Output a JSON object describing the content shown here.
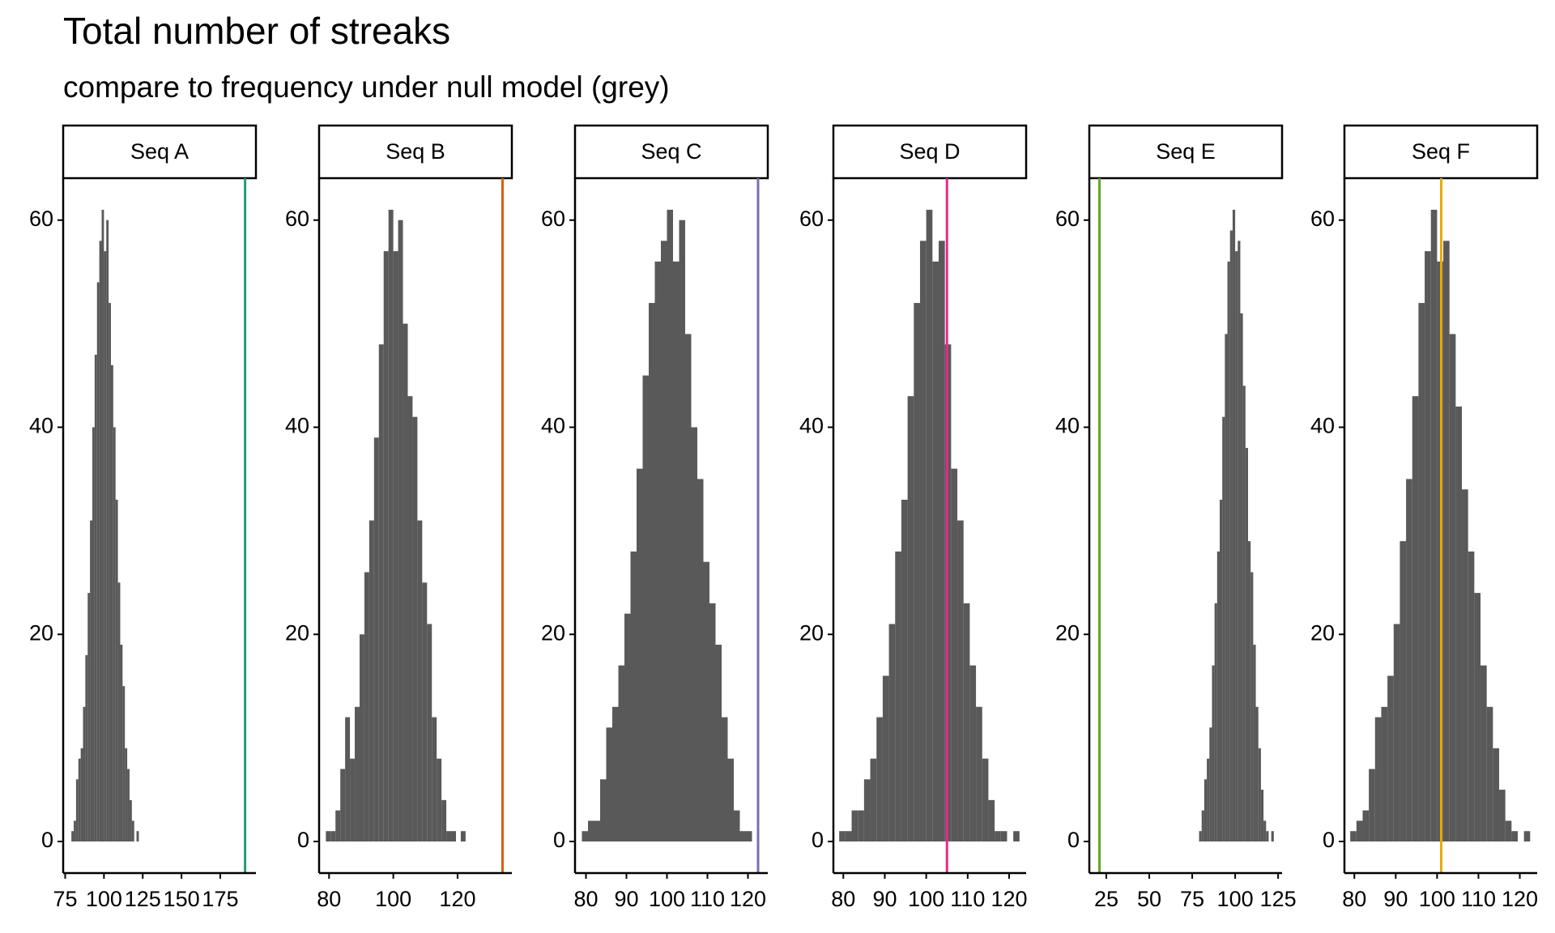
{
  "title": "Total number of streaks",
  "subtitle": "compare to frequency under null model (grey)",
  "chart_data": [
    {
      "type": "histogram",
      "panel_label": "Seq A",
      "color": "#595959",
      "vline": 191,
      "vline_color": "#1b9e77",
      "bins": [
        79,
        80.5,
        82,
        83.5,
        85,
        86.5,
        88,
        89.5,
        91,
        92.5,
        94,
        95.5,
        97,
        98.5,
        100,
        101.5,
        103,
        104.5,
        106,
        107.5,
        109,
        110.5,
        112,
        113.5,
        115,
        116.5,
        118,
        119.5,
        121,
        122.5,
        124
      ],
      "counts": [
        1,
        2,
        6,
        8,
        9,
        13,
        18,
        24,
        31,
        40,
        47,
        54,
        58,
        61,
        57,
        60,
        52,
        46,
        40,
        33,
        25,
        19,
        15,
        9,
        7,
        4,
        2,
        0,
        1,
        0
      ],
      "xlim": [
        73.7,
        198
      ],
      "xticks": [
        75,
        100,
        125,
        150,
        175
      ],
      "ylim": [
        -3.05,
        64.05
      ],
      "yticks": [
        0,
        20,
        40,
        60
      ]
    },
    {
      "type": "histogram",
      "panel_label": "Seq B",
      "color": "#595959",
      "vline": 134,
      "vline_color": "#d95f02",
      "bins": [
        79,
        80.5,
        82,
        83.5,
        85,
        86.5,
        88,
        89.5,
        91,
        92.5,
        94,
        95.5,
        97,
        98.5,
        100,
        101.5,
        103,
        104.5,
        106,
        107.5,
        109,
        110.5,
        112,
        113.5,
        115,
        116.5,
        118,
        119.5,
        121,
        122.5,
        124
      ],
      "counts": [
        1,
        1,
        3,
        7,
        12,
        8,
        13,
        20,
        26,
        31,
        39,
        48,
        57,
        61,
        57,
        60,
        50,
        43,
        41,
        31,
        25,
        21,
        12,
        8,
        4,
        1,
        1,
        0,
        1,
        0
      ],
      "xlim": [
        76.9,
        136.9
      ],
      "xticks": [
        80,
        100,
        120
      ],
      "ylim": [
        -3.05,
        64.05
      ],
      "yticks": [
        0,
        20,
        40,
        60
      ]
    },
    {
      "type": "histogram",
      "panel_label": "Seq C",
      "color": "#595959",
      "vline": 122.5,
      "vline_color": "#7570b3",
      "bins": [
        79,
        80.5,
        82,
        83.5,
        85,
        86.5,
        88,
        89.5,
        91,
        92.5,
        94,
        95.5,
        97,
        98.5,
        100,
        101.5,
        103,
        104.5,
        106,
        107.5,
        109,
        110.5,
        112,
        113.5,
        115,
        116.5,
        118,
        119.5,
        121,
        122.5,
        124
      ],
      "counts": [
        1,
        2,
        2,
        6,
        11,
        13,
        17,
        22,
        28,
        36,
        45,
        52,
        56,
        58,
        61,
        56,
        60,
        49,
        40,
        35,
        27,
        23,
        19,
        12,
        8,
        3,
        1,
        1,
        0,
        0
      ],
      "xlim": [
        77.3,
        124.9
      ],
      "xticks": [
        80,
        90,
        100,
        110,
        120
      ],
      "ylim": [
        -3.05,
        64.05
      ],
      "yticks": [
        0,
        20,
        40,
        60
      ]
    },
    {
      "type": "histogram",
      "panel_label": "Seq D",
      "color": "#595959",
      "vline": 105,
      "vline_color": "#e7298a",
      "bins": [
        79,
        80.5,
        82,
        83.5,
        85,
        86.5,
        88,
        89.5,
        91,
        92.5,
        94,
        95.5,
        97,
        98.5,
        100,
        101.5,
        103,
        104.5,
        106,
        107.5,
        109,
        110.5,
        112,
        113.5,
        115,
        116.5,
        118,
        119.5,
        121,
        122.5,
        124
      ],
      "counts": [
        1,
        1,
        3,
        3,
        6,
        8,
        12,
        16,
        21,
        28,
        33,
        43,
        52,
        58,
        61,
        56,
        58,
        48,
        36,
        31,
        23,
        17,
        13,
        8,
        4,
        1,
        1,
        0,
        1,
        0
      ],
      "xlim": [
        77.6,
        124.1
      ],
      "xticks": [
        80,
        90,
        100,
        110,
        120
      ],
      "ylim": [
        -3.05,
        64.05
      ],
      "yticks": [
        0,
        20,
        40,
        60
      ]
    },
    {
      "type": "histogram",
      "panel_label": "Seq E",
      "color": "#595959",
      "vline": 21,
      "vline_color": "#66a61e",
      "bins": [
        79,
        80.5,
        82,
        83.5,
        85,
        86.5,
        88,
        89.5,
        91,
        92.5,
        94,
        95.5,
        97,
        98.5,
        100,
        101.5,
        103,
        104.5,
        106,
        107.5,
        109,
        110.5,
        112,
        113.5,
        115,
        116.5,
        118,
        119.5,
        121,
        122.5,
        124
      ],
      "counts": [
        1,
        3,
        6,
        8,
        11,
        17,
        23,
        28,
        33,
        41,
        49,
        56,
        59,
        61,
        57,
        58,
        51,
        44,
        38,
        29,
        26,
        19,
        13,
        9,
        5,
        2,
        1,
        0,
        1,
        0
      ],
      "xlim": [
        15.1,
        127.3
      ],
      "xticks": [
        25,
        50,
        75,
        100,
        125
      ],
      "ylim": [
        -3.05,
        64.05
      ],
      "yticks": [
        0,
        20,
        40,
        60
      ]
    },
    {
      "type": "histogram",
      "panel_label": "Seq F",
      "color": "#595959",
      "vline": 101,
      "vline_color": "#e6ab02",
      "bins": [
        79,
        80.5,
        82,
        83.5,
        85,
        86.5,
        88,
        89.5,
        91,
        92.5,
        94,
        95.5,
        97,
        98.5,
        100,
        101.5,
        103,
        104.5,
        106,
        107.5,
        109,
        110.5,
        112,
        113.5,
        115,
        116.5,
        118,
        119.5,
        121,
        122.5,
        124
      ],
      "counts": [
        1,
        2,
        3,
        7,
        12,
        13,
        16,
        21,
        29,
        35,
        43,
        52,
        57,
        61,
        56,
        58,
        49,
        42,
        34,
        28,
        24,
        17,
        13,
        9,
        5,
        2,
        1,
        0,
        1,
        0
      ],
      "xlim": [
        77.6,
        124.2
      ],
      "xticks": [
        80,
        90,
        100,
        110,
        120
      ],
      "ylim": [
        -3.05,
        64.05
      ],
      "yticks": [
        0,
        20,
        40,
        60
      ]
    }
  ]
}
